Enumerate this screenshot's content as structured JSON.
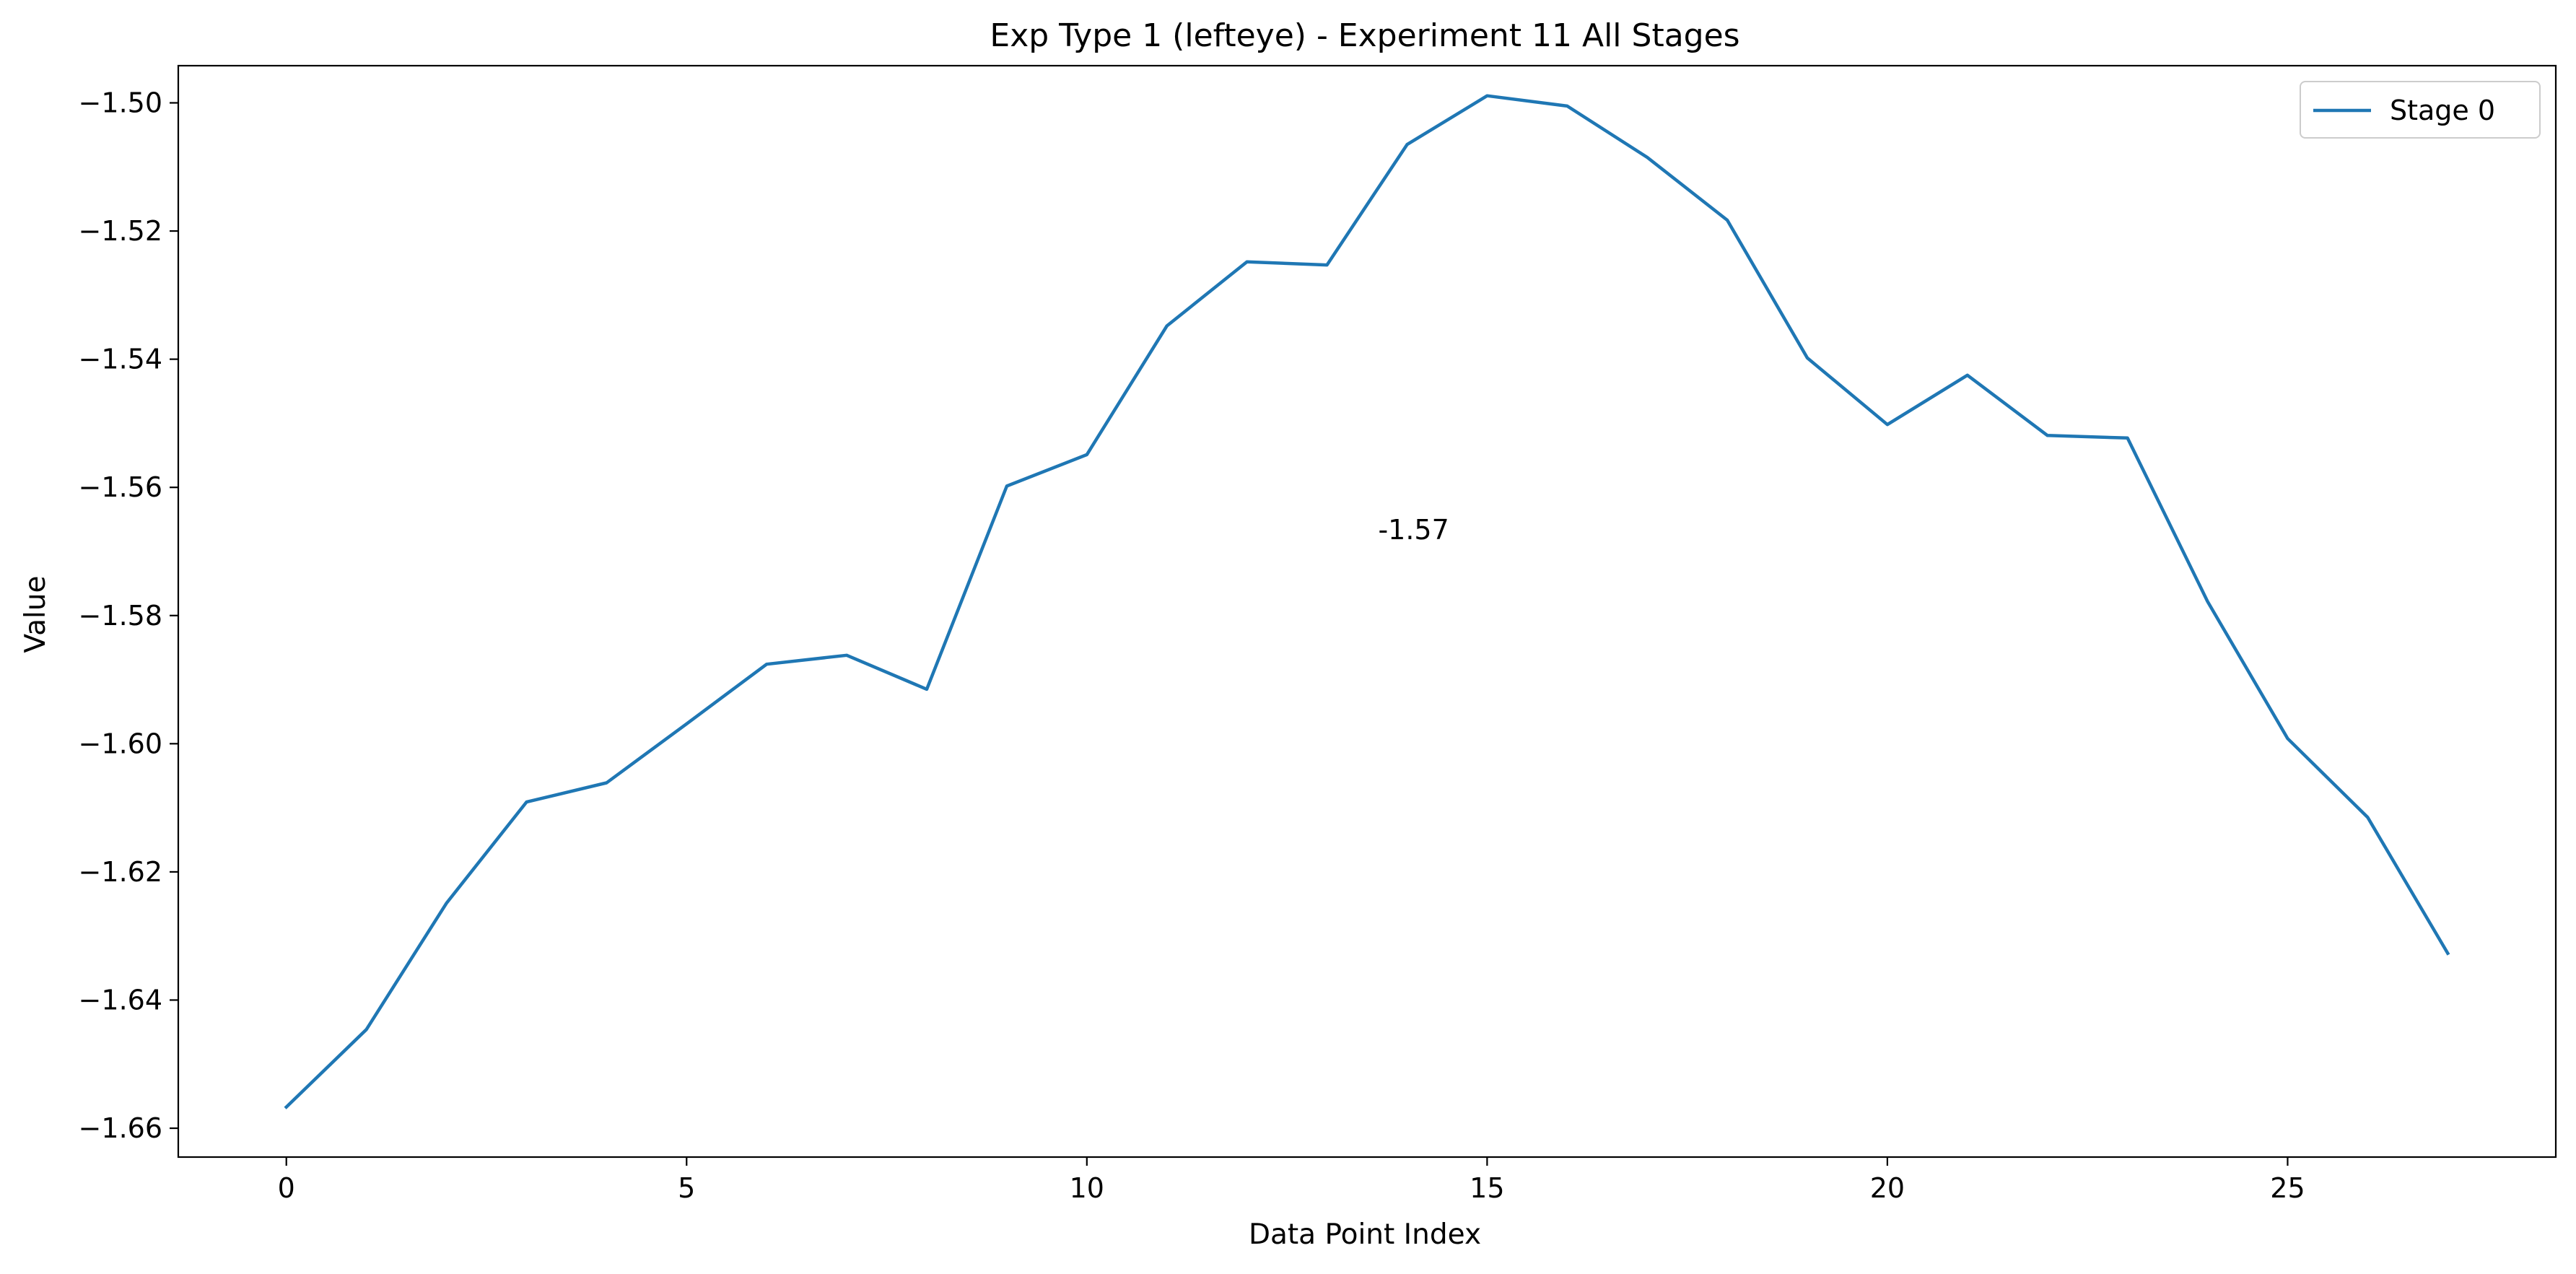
{
  "chart_data": {
    "type": "line",
    "title": "Exp Type 1 (lefteye) - Experiment 11 All Stages",
    "xlabel": "Data Point Index",
    "ylabel": "Value",
    "xlim": [
      -1.35,
      28.35
    ],
    "ylim": [
      -1.6645,
      -1.4942
    ],
    "xticks": [
      0,
      5,
      10,
      15,
      20,
      25
    ],
    "xtick_labels": [
      "0",
      "5",
      "10",
      "15",
      "20",
      "25"
    ],
    "yticks": [
      -1.66,
      -1.64,
      -1.62,
      -1.6,
      -1.58,
      -1.56,
      -1.54,
      -1.52,
      -1.5
    ],
    "ytick_labels": [
      "−1.66",
      "−1.64",
      "−1.62",
      "−1.60",
      "−1.58",
      "−1.56",
      "−1.54",
      "−1.52",
      "−1.50"
    ],
    "grid": false,
    "legend_position": "top-right",
    "series": [
      {
        "name": "Stage 0",
        "color": "#1f77b4",
        "x": [
          0,
          1,
          2,
          3,
          4,
          5,
          6,
          7,
          8,
          9,
          10,
          11,
          12,
          13,
          14,
          15,
          16,
          17,
          18,
          19,
          20,
          21,
          22,
          23,
          24,
          25,
          26,
          27
        ],
        "values": [
          -1.6567,
          -1.6446,
          -1.6249,
          -1.6091,
          -1.6061,
          -1.5969,
          -1.5876,
          -1.5862,
          -1.5915,
          -1.5598,
          -1.5549,
          -1.5348,
          -1.5248,
          -1.5253,
          -1.5065,
          -1.4989,
          -1.5005,
          -1.5085,
          -1.5183,
          -1.5398,
          -1.5502,
          -1.5425,
          -1.5519,
          -1.5523,
          -1.5778,
          -1.5992,
          -1.6115,
          -1.6327
        ]
      }
    ],
    "annotations": [
      {
        "text": "-1.57",
        "x": 14.0,
        "y": -1.5665
      }
    ]
  }
}
